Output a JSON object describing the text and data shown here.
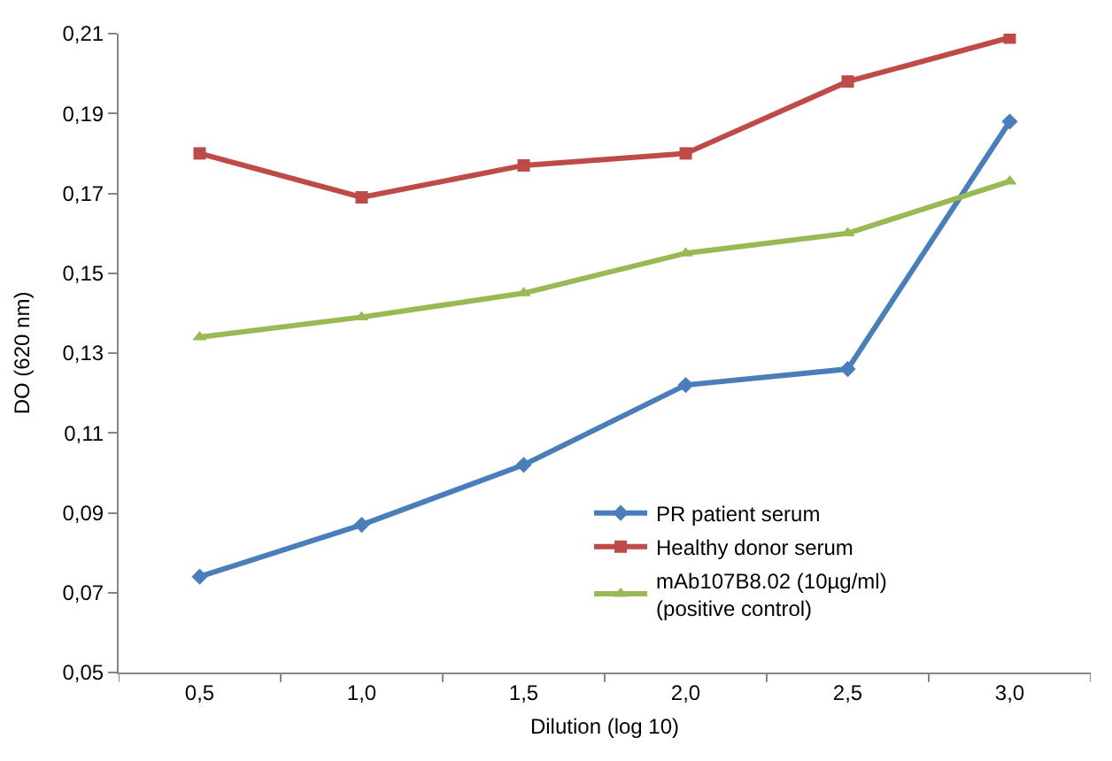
{
  "chart_data": {
    "type": "line",
    "xlabel": "Dilution (log 10)",
    "ylabel": "DO (620 nm)",
    "categories": [
      "0,5",
      "1,0",
      "1,5",
      "2,0",
      "2,5",
      "3,0"
    ],
    "series": [
      {
        "name": "PR patient serum",
        "color": "#4a7ebb",
        "marker": "diamond",
        "values": [
          0.074,
          0.087,
          0.102,
          0.122,
          0.126,
          0.188
        ]
      },
      {
        "name": "Healthy donor serum",
        "color": "#be4b48",
        "marker": "square",
        "values": [
          0.18,
          0.169,
          0.177,
          0.18,
          0.198,
          0.209
        ]
      },
      {
        "name": "mAb107B8.02 (10µg/ml)\n(positive control)",
        "color": "#98b954",
        "marker": "triangle",
        "values": [
          0.134,
          0.139,
          0.145,
          0.155,
          0.16,
          0.173
        ]
      }
    ],
    "ylim": [
      0.05,
      0.21
    ],
    "yticks": [
      {
        "value": 0.05,
        "label": "0,05"
      },
      {
        "value": 0.07,
        "label": "0,07"
      },
      {
        "value": 0.09,
        "label": "0,09"
      },
      {
        "value": 0.11,
        "label": "0,11"
      },
      {
        "value": 0.13,
        "label": "0,13"
      },
      {
        "value": 0.15,
        "label": "0,15"
      },
      {
        "value": 0.17,
        "label": "0,17"
      },
      {
        "value": 0.19,
        "label": "0,19"
      },
      {
        "value": 0.21,
        "label": "0,21"
      }
    ],
    "legend": "bottom right",
    "line_style": "solid"
  }
}
